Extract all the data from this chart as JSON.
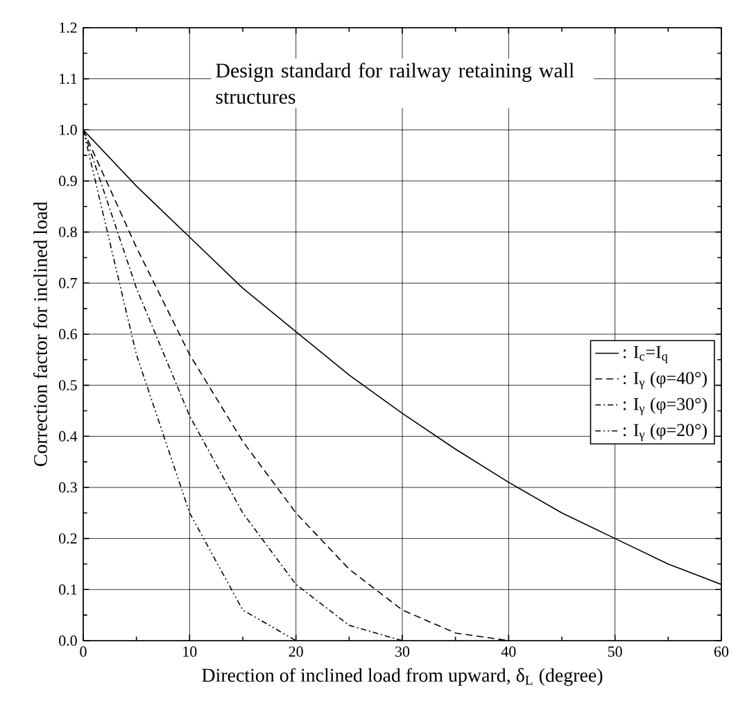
{
  "chart_data": {
    "type": "line",
    "xlabel": "Direction of inclined load from upward, δ$_{L}$ (degree)",
    "ylabel": "Correction factor for inclined load",
    "annotations": [
      "Design standard for railway retaining wall structures"
    ],
    "series": [
      {
        "name": ": I$_{c}$=I$_{q}$",
        "color": "#000000",
        "line_style": "solid",
        "x": [
          0,
          5,
          10,
          15,
          20,
          25,
          30,
          35,
          40,
          45,
          50,
          55,
          60
        ],
        "values": [
          1,
          0.89,
          0.79,
          0.69,
          0.605,
          0.52,
          0.445,
          0.375,
          0.31,
          0.25,
          0.2,
          0.15,
          0.11
        ]
      },
      {
        "name": ": I$_{γ}$ (φ=40°)",
        "color": "#000000",
        "line_style": "dashed",
        "x": [
          0,
          5,
          10,
          15,
          20,
          25,
          30,
          35,
          40
        ],
        "values": [
          1,
          0.77,
          0.56,
          0.39,
          0.25,
          0.14,
          0.06,
          0.015,
          0
        ]
      },
      {
        "name": ": I$_{γ}$ (φ=30°)",
        "color": "#000000",
        "line_style": "dashdot",
        "x": [
          0,
          5,
          10,
          15,
          20,
          25,
          30
        ],
        "values": [
          1,
          0.69,
          0.44,
          0.25,
          0.11,
          0.03,
          0
        ]
      },
      {
        "name": ": I$_{γ}$ (φ=20°)",
        "color": "#000000",
        "line_style": "dashdotdot",
        "x": [
          0,
          5,
          10,
          15,
          20
        ],
        "values": [
          1,
          0.56,
          0.25,
          0.06,
          0
        ]
      }
    ],
    "xlim": [
      0,
      60
    ],
    "xticks": [
      0,
      10,
      20,
      30,
      40,
      50,
      60
    ],
    "ylim": [
      0,
      1.2
    ],
    "yticks": [
      {
        "value": 0,
        "label": "0.0"
      },
      {
        "value": 0.1,
        "label": "0.1"
      },
      {
        "value": 0.2,
        "label": "0.2"
      },
      {
        "value": 0.3,
        "label": "0.3"
      },
      {
        "value": 0.4,
        "label": "0.4"
      },
      {
        "value": 0.5,
        "label": "0.5"
      },
      {
        "value": 0.6,
        "label": "0.6"
      },
      {
        "value": 0.7,
        "label": "0.7"
      },
      {
        "value": 0.8,
        "label": "0.8"
      },
      {
        "value": 0.9,
        "label": "0.9"
      },
      {
        "value": 1.0,
        "label": "1.0"
      },
      {
        "value": 1.1,
        "label": "1.1"
      },
      {
        "value": 1.2,
        "label": "1.2"
      }
    ],
    "grid": true,
    "legend": "right",
    "marker": "none"
  }
}
